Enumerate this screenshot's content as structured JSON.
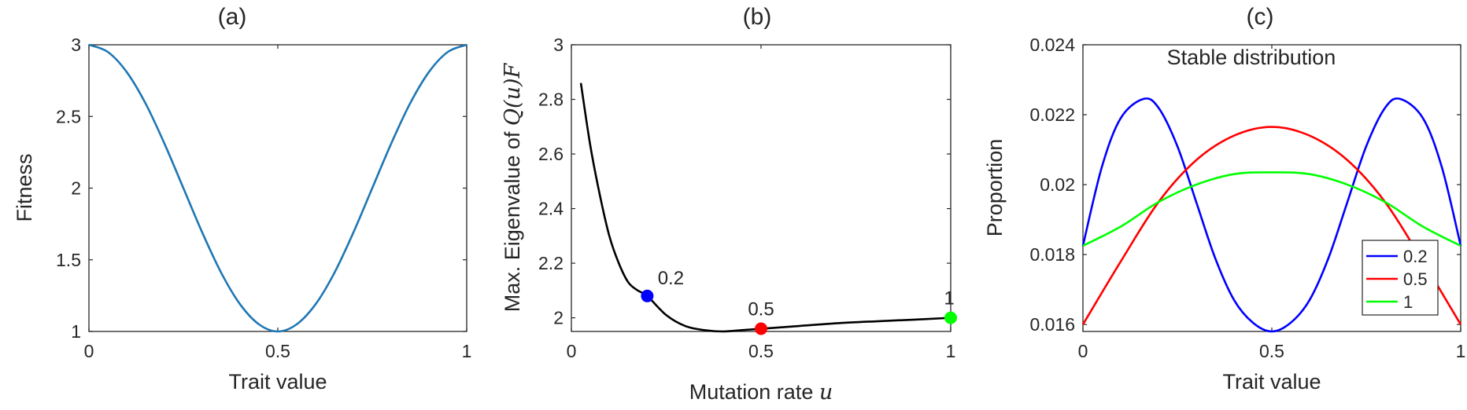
{
  "chart_data": [
    {
      "type": "line",
      "title": "(a)",
      "xlabel": "Trait value",
      "ylabel": "Fitness",
      "xlim": [
        0,
        1
      ],
      "ylim": [
        1,
        3
      ],
      "xticks": [
        0,
        0.5,
        1
      ],
      "xtick_labels": [
        "0",
        "0.5",
        "1"
      ],
      "yticks": [
        1,
        1.5,
        2,
        2.5,
        3
      ],
      "ytick_labels": [
        "1",
        "1.5",
        "2",
        "2.5",
        "3"
      ],
      "series": [
        {
          "color": "#1f77b4",
          "x": [
            0,
            0.05,
            0.1,
            0.15,
            0.2,
            0.25,
            0.3,
            0.35,
            0.4,
            0.45,
            0.5,
            0.55,
            0.6,
            0.65,
            0.7,
            0.75,
            0.8,
            0.85,
            0.9,
            0.95,
            1
          ],
          "y": [
            3,
            2.95,
            2.81,
            2.59,
            2.31,
            2,
            1.69,
            1.41,
            1.19,
            1.05,
            1,
            1.05,
            1.19,
            1.41,
            1.69,
            2,
            2.31,
            2.59,
            2.81,
            2.95,
            3
          ]
        }
      ]
    },
    {
      "type": "line",
      "title": "(b)",
      "xlabel": "Mutation rate",
      "xlabel_symbol": "u",
      "ylabel": "Max. Eigenvalue of",
      "ylabel_symbol": "Q(u)F",
      "xlim": [
        0,
        1
      ],
      "ylim": [
        1.95,
        3
      ],
      "xticks": [
        0,
        0.5,
        1
      ],
      "xtick_labels": [
        "0",
        "0.5",
        "1"
      ],
      "yticks": [
        2,
        2.2,
        2.4,
        2.6,
        2.8,
        3
      ],
      "ytick_labels": [
        "2",
        "2.2",
        "2.4",
        "2.6",
        "2.8",
        "3"
      ],
      "series": [
        {
          "color": "#000000",
          "x": [
            0.025,
            0.05,
            0.075,
            0.1,
            0.125,
            0.15,
            0.175,
            0.2,
            0.25,
            0.3,
            0.35,
            0.4,
            0.45,
            0.5,
            0.6,
            0.7,
            0.8,
            0.9,
            1
          ],
          "y": [
            2.86,
            2.63,
            2.45,
            2.3,
            2.2,
            2.13,
            2.1,
            2.08,
            2.01,
            1.97,
            1.955,
            1.95,
            1.955,
            1.96,
            1.97,
            1.98,
            1.987,
            1.993,
            2
          ]
        }
      ],
      "markers": [
        {
          "x": 0.2,
          "y": 2.08,
          "color": "#0000ff",
          "label": "0.2"
        },
        {
          "x": 0.5,
          "y": 1.96,
          "color": "#ff0000",
          "label": "0.5"
        },
        {
          "x": 1,
          "y": 2,
          "color": "#00ff00",
          "label": "1"
        }
      ]
    },
    {
      "type": "line",
      "title": "(c)",
      "subtitle": "Stable distribution",
      "xlabel": "Trait value",
      "ylabel": "Proportion",
      "xlim": [
        0,
        1
      ],
      "ylim": [
        0.0158,
        0.024
      ],
      "xticks": [
        0,
        0.5,
        1
      ],
      "xtick_labels": [
        "0",
        "0.5",
        "1"
      ],
      "yticks": [
        0.016,
        0.018,
        0.02,
        0.022,
        0.024
      ],
      "ytick_labels": [
        "0.016",
        "0.018",
        "0.02",
        "0.022",
        "0.024"
      ],
      "legend_position": "bottom-right",
      "series": [
        {
          "name": "0.2",
          "color": "#0000ff",
          "x": [
            0,
            0.05,
            0.1,
            0.16,
            0.2,
            0.25,
            0.3,
            0.35,
            0.4,
            0.45,
            0.5,
            0.55,
            0.6,
            0.65,
            0.7,
            0.75,
            0.8,
            0.84,
            0.9,
            0.95,
            1
          ],
          "y": [
            0.01825,
            0.0205,
            0.0219,
            0.02245,
            0.0222,
            0.0211,
            0.0195,
            0.0179,
            0.0167,
            0.01605,
            0.0158,
            0.01605,
            0.0167,
            0.0179,
            0.0195,
            0.0211,
            0.0222,
            0.02245,
            0.0219,
            0.0205,
            0.01825
          ]
        },
        {
          "name": "0.5",
          "color": "#ff0000",
          "x": [
            0,
            0.1,
            0.2,
            0.3,
            0.4,
            0.5,
            0.6,
            0.7,
            0.8,
            0.9,
            1
          ],
          "y": [
            0.016,
            0.0178,
            0.0195,
            0.0207,
            0.0214,
            0.02165,
            0.0214,
            0.0207,
            0.0195,
            0.0178,
            0.016
          ]
        },
        {
          "name": "1",
          "color": "#00ff00",
          "x": [
            0,
            0.1,
            0.2,
            0.3,
            0.4,
            0.5,
            0.6,
            0.7,
            0.8,
            0.9,
            1
          ],
          "y": [
            0.01825,
            0.0188,
            0.0195,
            0.02,
            0.0203,
            0.02035,
            0.0203,
            0.02,
            0.0195,
            0.0188,
            0.01825
          ]
        }
      ]
    }
  ]
}
